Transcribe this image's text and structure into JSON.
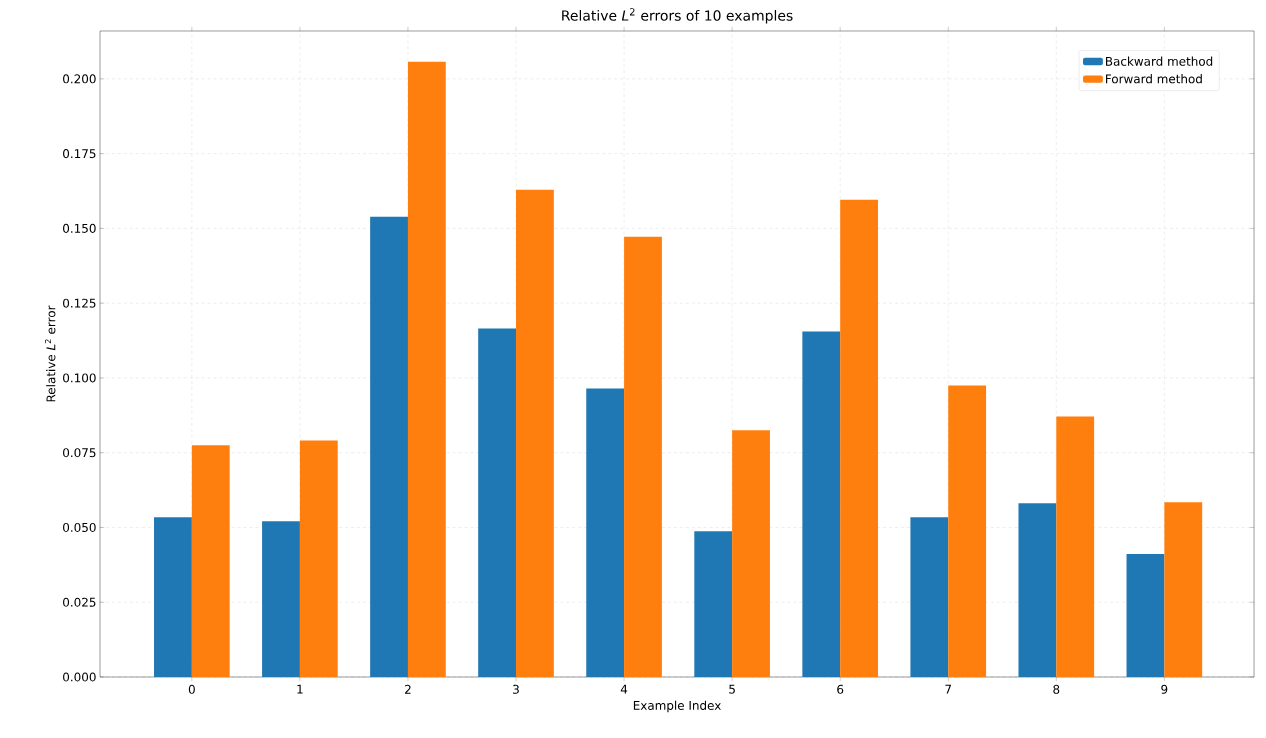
{
  "chart_data": {
    "type": "bar",
    "title": "Relative *L*$^{2}$ errors of 10 examples",
    "xlabel": "Example Index",
    "ylabel": "Relative *L*$^{2}$ error",
    "categories": [
      "0",
      "1",
      "2",
      "3",
      "4",
      "5",
      "6",
      "7",
      "8",
      "9"
    ],
    "series": [
      {
        "name": "Backward method",
        "color": "#1f77b4",
        "values": [
          0.0534,
          0.0521,
          0.1539,
          0.1165,
          0.0965,
          0.0487,
          0.1155,
          0.0534,
          0.0581,
          0.0411
        ]
      },
      {
        "name": "Forward method",
        "color": "#ff7f0e",
        "values": [
          0.0775,
          0.0791,
          0.2057,
          0.1629,
          0.1472,
          0.0825,
          0.1596,
          0.0975,
          0.0871,
          0.0584
        ]
      }
    ],
    "ylim": [
      0,
      0.216
    ],
    "yticks": [
      {
        "value": 0,
        "label": "0.000"
      },
      {
        "value": 0.025,
        "label": "0.025"
      },
      {
        "value": 0.05,
        "label": "0.050"
      },
      {
        "value": 0.075,
        "label": "0.075"
      },
      {
        "value": 0.1,
        "label": "0.100"
      },
      {
        "value": 0.125,
        "label": "0.125"
      },
      {
        "value": 0.15,
        "label": "0.150"
      },
      {
        "value": 0.175,
        "label": "0.175"
      },
      {
        "value": 0.2,
        "label": "0.200"
      }
    ],
    "grid": true,
    "legend": "top right"
  }
}
